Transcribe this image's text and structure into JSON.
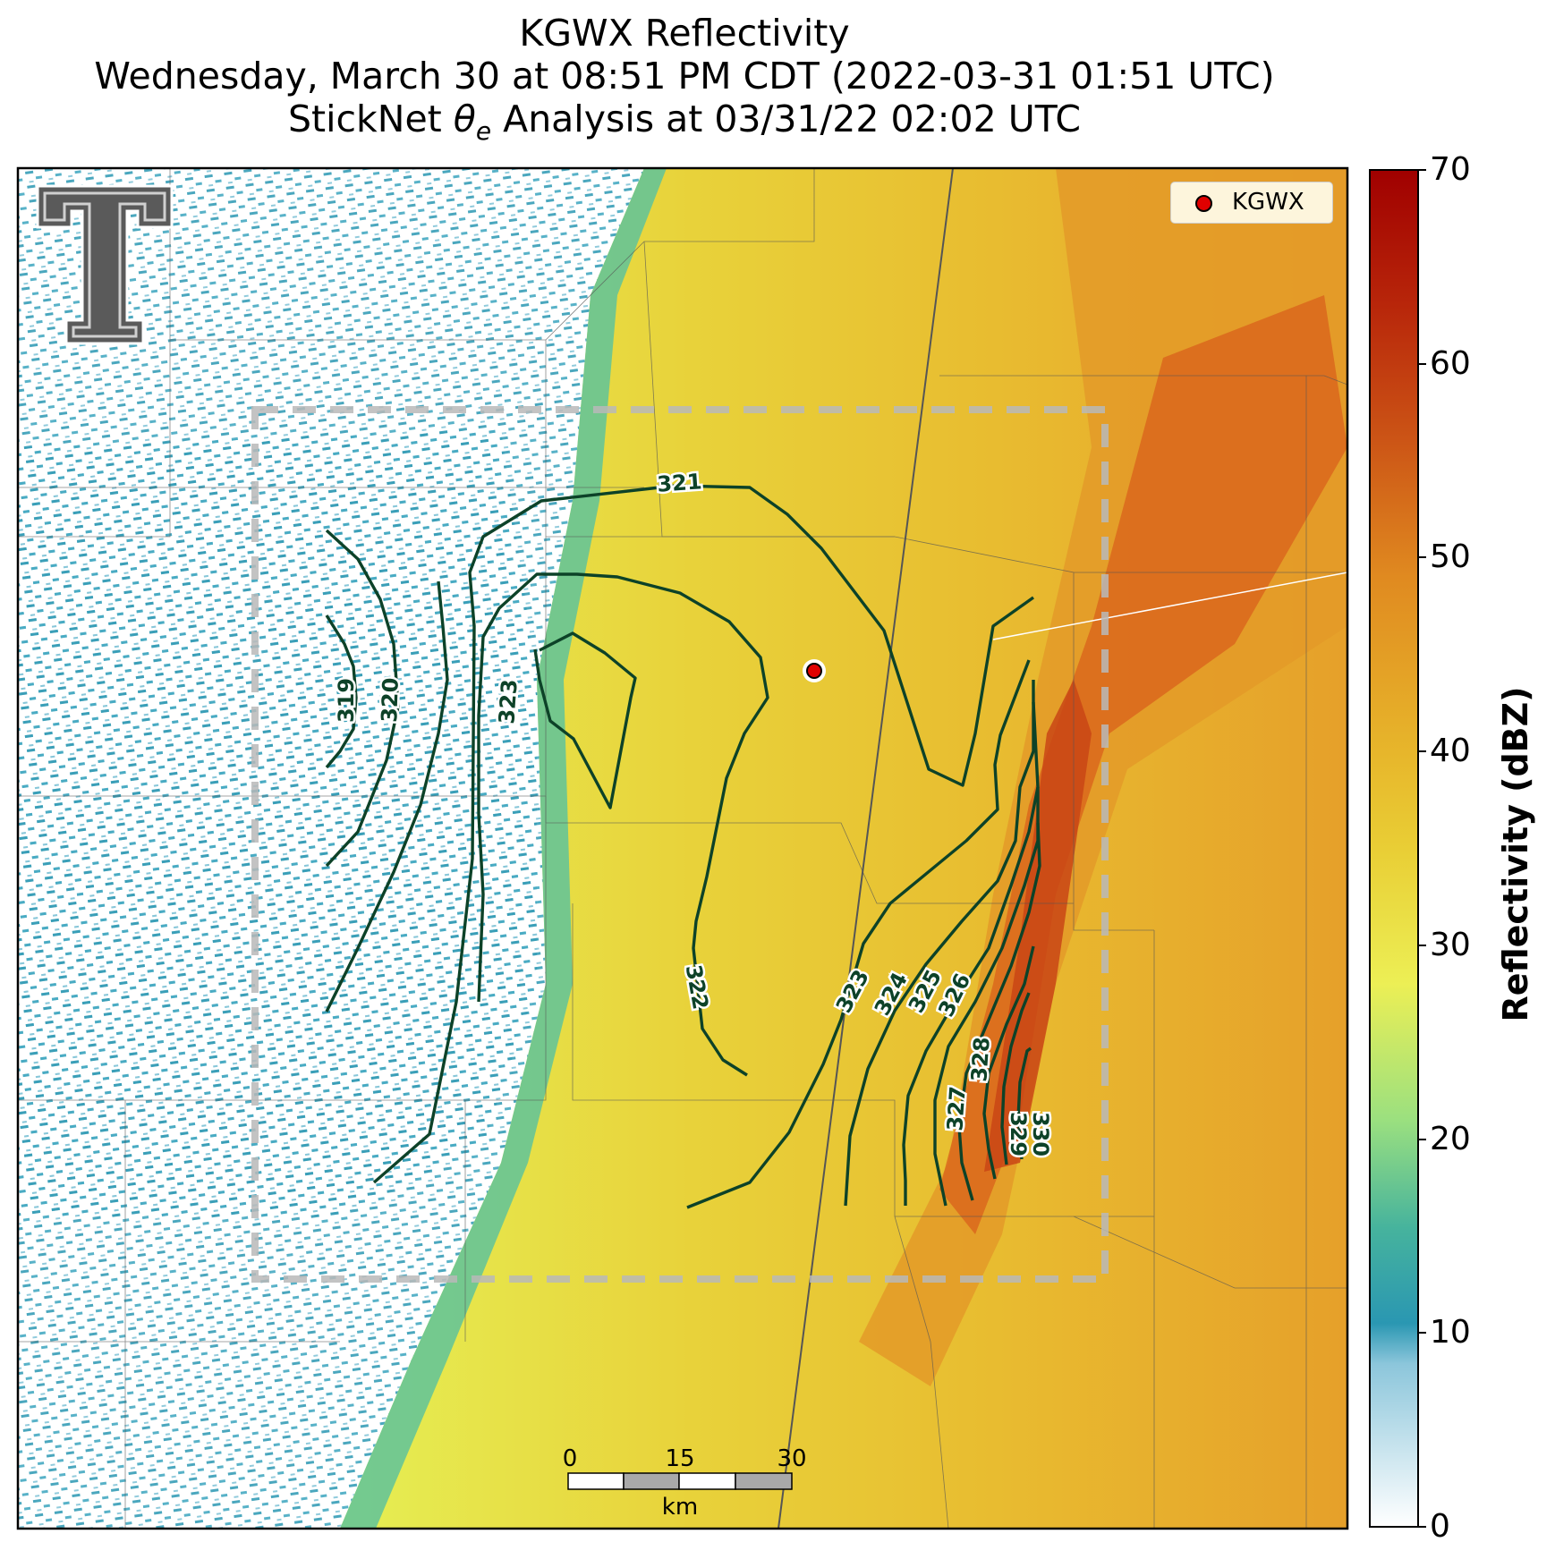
{
  "title": {
    "line1": "KGWX Reflectivity",
    "line2": "Wednesday, March 30 at 08:51 PM CDT (2022-03-31 01:51 UTC)",
    "line3_prefix": "StickNet ",
    "line3_symbol": "θ",
    "line3_sub": "e",
    "line3_suffix": " Analysis at 03/31/22 02:02 UTC"
  },
  "legend": {
    "label": "KGWX",
    "marker_color": "#e00000"
  },
  "colorbar": {
    "label": "Reflectivity (dBZ)",
    "ticks": [
      "0",
      "10",
      "20",
      "30",
      "40",
      "50",
      "60",
      "70"
    ],
    "colors": [
      "#ffffff",
      "#4aa7c0",
      "#2496b0",
      "#7fd49a",
      "#e6f05a",
      "#e9c22e",
      "#e28a1c",
      "#c84a10",
      "#b00000"
    ]
  },
  "contours": {
    "line_color": "#0d4228",
    "labels": [
      "319",
      "320",
      "321",
      "322",
      "323",
      "323",
      "324",
      "325",
      "326",
      "327",
      "328",
      "329",
      "330"
    ]
  },
  "scale_bar": {
    "ticks": [
      "0",
      "15",
      "30"
    ],
    "unit": "km"
  },
  "logo": {
    "text": "T"
  },
  "colors": {
    "echo_low": "#2a9bb5",
    "echo_mid": "#e9e04a",
    "echo_high": "#e59a2a",
    "echo_core": "#d2591b",
    "analysis_box": "#b8b8b8"
  }
}
